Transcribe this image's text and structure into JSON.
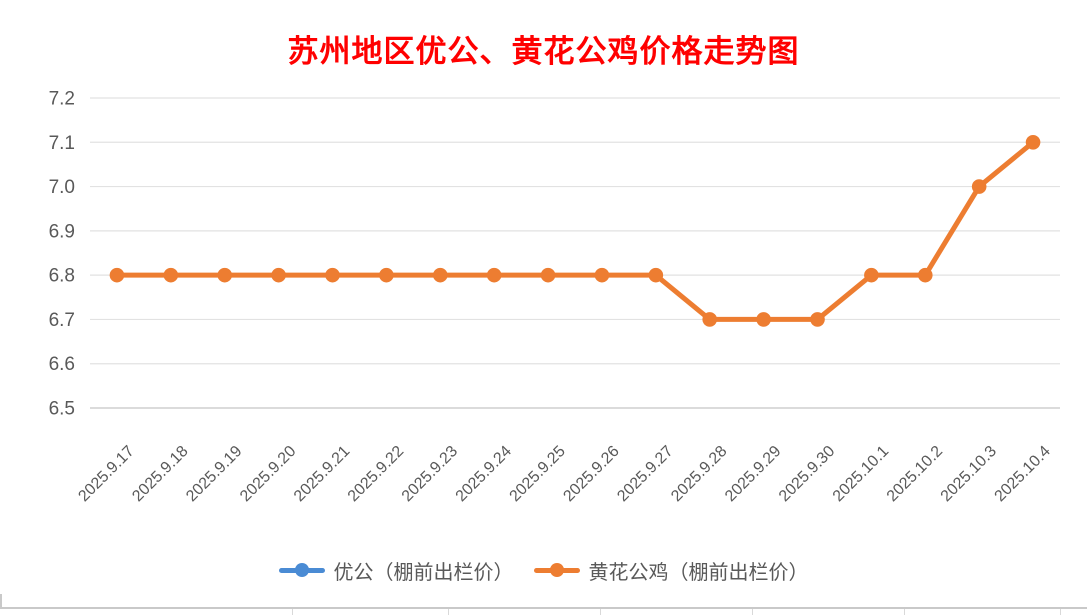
{
  "chart": {
    "title": "苏州地区优公、黄花公鸡价格走势图",
    "title_color": "#FF0000"
  },
  "chart_data": {
    "type": "line",
    "title": "苏州地区优公、黄花公鸡价格走势图",
    "categories": [
      "2025.9.17",
      "2025.9.18",
      "2025.9.19",
      "2025.9.20",
      "2025.9.21",
      "2025.9.22",
      "2025.9.23",
      "2025.9.24",
      "2025.9.25",
      "2025.9.26",
      "2025.9.27",
      "2025.9.28",
      "2025.9.29",
      "2025.9.30",
      "2025.10.1",
      "2025.10.2",
      "2025.10.3",
      "2025.10.4"
    ],
    "series": [
      {
        "name": "优公（棚前出栏价）",
        "color": "#4A8BD4",
        "values": []
      },
      {
        "name": "黄花公鸡（棚前出栏价）",
        "color": "#ED7D31",
        "values": [
          6.8,
          6.8,
          6.8,
          6.8,
          6.8,
          6.8,
          6.8,
          6.8,
          6.8,
          6.8,
          6.8,
          6.7,
          6.7,
          6.7,
          6.8,
          6.8,
          7.0,
          7.1
        ]
      }
    ],
    "ylim": [
      6.5,
      7.2
    ],
    "yticks": [
      6.5,
      6.6,
      6.7,
      6.8,
      6.9,
      7.0,
      7.1,
      7.2
    ],
    "xlabel": "",
    "ylabel": "",
    "grid": true,
    "legend_position": "bottom",
    "axis_text_color": "#595959",
    "gridline_color": "#E2E2E2",
    "axis_line_color": "#CFCFCF"
  }
}
